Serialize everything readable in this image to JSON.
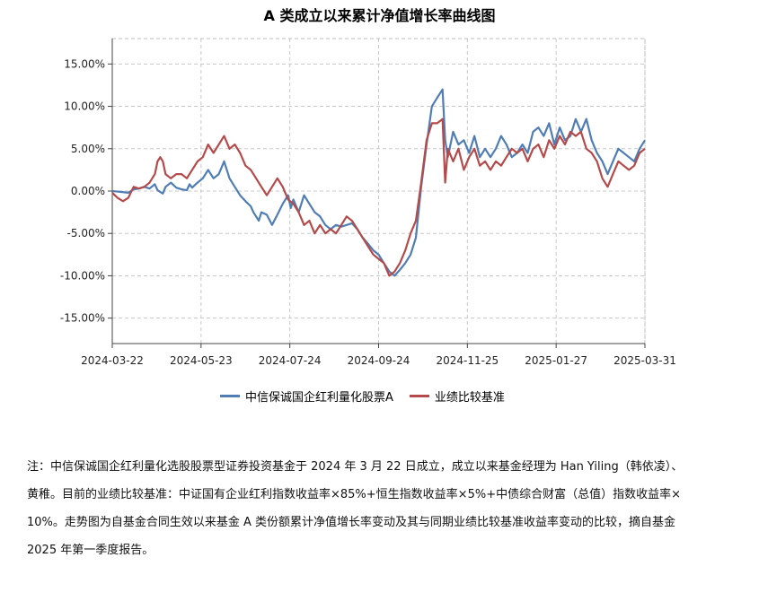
{
  "chart_data": {
    "type": "line",
    "title": "A 类成立以来累计净值增长率曲线图",
    "x_tick_labels": [
      "2024-03-22",
      "2024-05-23",
      "2024-07-24",
      "2024-09-24",
      "2024-11-25",
      "2025-01-27",
      "2025-03-31"
    ],
    "y_tick_labels": [
      "15.00%",
      "10.00%",
      "5.00%",
      "0.00%",
      "-5.00%",
      "-10.00%",
      "-15.00%"
    ],
    "ylim": [
      -18,
      18
    ],
    "xlim": [
      0,
      100
    ],
    "y_unit": "%",
    "grid": true,
    "legend_position": "bottom",
    "series": [
      {
        "name": "中信保诚国企红利量化股票A",
        "color": "#4f7db5",
        "points": [
          [
            0,
            0
          ],
          [
            1.5,
            -0.1
          ],
          [
            3,
            -0.2
          ],
          [
            4,
            0.2
          ],
          [
            5,
            0.3
          ],
          [
            6,
            0.5
          ],
          [
            7,
            0.3
          ],
          [
            8,
            0.8
          ],
          [
            8.5,
            0.1
          ],
          [
            9.5,
            -0.3
          ],
          [
            10,
            0.5
          ],
          [
            11,
            1.0
          ],
          [
            12,
            0.4
          ],
          [
            13,
            0.2
          ],
          [
            14,
            0.1
          ],
          [
            14.5,
            0.8
          ],
          [
            15,
            0.4
          ],
          [
            16,
            1.0
          ],
          [
            17,
            1.5
          ],
          [
            18,
            2.5
          ],
          [
            19,
            1.5
          ],
          [
            20,
            2.0
          ],
          [
            21,
            3.5
          ],
          [
            22,
            1.5
          ],
          [
            23,
            0.5
          ],
          [
            24,
            -0.5
          ],
          [
            25,
            -1.2
          ],
          [
            26,
            -1.8
          ],
          [
            26.5,
            -2.5
          ],
          [
            27.5,
            -3.5
          ],
          [
            28,
            -2.5
          ],
          [
            29,
            -2.8
          ],
          [
            30,
            -4.0
          ],
          [
            31,
            -2.8
          ],
          [
            32,
            -1.5
          ],
          [
            33,
            -0.5
          ],
          [
            33.5,
            -2.0
          ],
          [
            34,
            -1.0
          ],
          [
            35,
            -2.5
          ],
          [
            36,
            -0.5
          ],
          [
            37,
            -1.5
          ],
          [
            38,
            -2.5
          ],
          [
            39,
            -3.0
          ],
          [
            40,
            -4.0
          ],
          [
            41,
            -4.5
          ],
          [
            42,
            -4.0
          ],
          [
            43,
            -4.2
          ],
          [
            44,
            -4.0
          ],
          [
            45,
            -3.8
          ],
          [
            46,
            -4.5
          ],
          [
            47,
            -5.5
          ],
          [
            48,
            -6.2
          ],
          [
            49,
            -7.0
          ],
          [
            50,
            -7.5
          ],
          [
            51,
            -8.5
          ],
          [
            52,
            -9.5
          ],
          [
            53,
            -10.0
          ],
          [
            54,
            -9.3
          ],
          [
            55,
            -8.5
          ],
          [
            56,
            -7.5
          ],
          [
            57,
            -5.5
          ],
          [
            58,
            0.5
          ],
          [
            59,
            5.5
          ],
          [
            60,
            10.0
          ],
          [
            61,
            11.0
          ],
          [
            62,
            12.0
          ],
          [
            62.5,
            6.0
          ],
          [
            63,
            4.0
          ],
          [
            64,
            7.0
          ],
          [
            65,
            5.5
          ],
          [
            66,
            6.0
          ],
          [
            67,
            4.5
          ],
          [
            68,
            6.5
          ],
          [
            69,
            4.0
          ],
          [
            70,
            5.0
          ],
          [
            71,
            4.0
          ],
          [
            72,
            5.0
          ],
          [
            73,
            6.5
          ],
          [
            74,
            5.5
          ],
          [
            75,
            4.0
          ],
          [
            76,
            4.5
          ],
          [
            77,
            5.5
          ],
          [
            78,
            4.5
          ],
          [
            79,
            7.0
          ],
          [
            80,
            7.5
          ],
          [
            81,
            6.5
          ],
          [
            82,
            8.0
          ],
          [
            83,
            5.5
          ],
          [
            84,
            7.5
          ],
          [
            85,
            6.0
          ],
          [
            86,
            6.5
          ],
          [
            87,
            8.5
          ],
          [
            88,
            7.0
          ],
          [
            89,
            8.5
          ],
          [
            90,
            6.0
          ],
          [
            91,
            4.5
          ],
          [
            92,
            3.5
          ],
          [
            93,
            2.0
          ],
          [
            94,
            3.5
          ],
          [
            95,
            5.0
          ],
          [
            96,
            4.5
          ],
          [
            97,
            4.0
          ],
          [
            98,
            3.5
          ],
          [
            99,
            5.0
          ],
          [
            100,
            6.0
          ]
        ]
      },
      {
        "name": "业绩比较基准",
        "color": "#b54a4a",
        "points": [
          [
            0,
            -0.2
          ],
          [
            1,
            -0.8
          ],
          [
            2,
            -1.2
          ],
          [
            3,
            -0.8
          ],
          [
            4,
            0.5
          ],
          [
            5,
            0.3
          ],
          [
            6,
            0.5
          ],
          [
            7,
            1.0
          ],
          [
            8,
            2.0
          ],
          [
            8.5,
            3.5
          ],
          [
            9,
            4.0
          ],
          [
            9.5,
            3.5
          ],
          [
            10,
            2.0
          ],
          [
            11,
            1.5
          ],
          [
            12,
            2.0
          ],
          [
            13,
            2.0
          ],
          [
            14,
            1.5
          ],
          [
            15,
            2.5
          ],
          [
            16,
            3.5
          ],
          [
            17,
            4.0
          ],
          [
            18,
            5.5
          ],
          [
            19,
            4.5
          ],
          [
            20,
            5.5
          ],
          [
            21,
            6.5
          ],
          [
            22,
            5.0
          ],
          [
            23,
            5.5
          ],
          [
            24,
            4.5
          ],
          [
            25,
            3.0
          ],
          [
            26,
            2.5
          ],
          [
            27,
            1.5
          ],
          [
            28,
            0.5
          ],
          [
            29,
            -0.5
          ],
          [
            30,
            0.5
          ],
          [
            31,
            1.5
          ],
          [
            32,
            0.5
          ],
          [
            33,
            -1.0
          ],
          [
            34,
            -1.5
          ],
          [
            35,
            -2.5
          ],
          [
            36,
            -4.0
          ],
          [
            37,
            -3.5
          ],
          [
            38,
            -5.0
          ],
          [
            39,
            -4.0
          ],
          [
            40,
            -5.0
          ],
          [
            41,
            -4.5
          ],
          [
            42,
            -5.0
          ],
          [
            43,
            -4.0
          ],
          [
            44,
            -3.0
          ],
          [
            45,
            -3.5
          ],
          [
            46,
            -4.5
          ],
          [
            47,
            -5.5
          ],
          [
            48,
            -6.5
          ],
          [
            49,
            -7.5
          ],
          [
            50,
            -8.0
          ],
          [
            51,
            -8.5
          ],
          [
            52,
            -10.0
          ],
          [
            53,
            -9.5
          ],
          [
            54,
            -8.5
          ],
          [
            55,
            -7.0
          ],
          [
            56,
            -5.0
          ],
          [
            57,
            -3.5
          ],
          [
            58,
            1.0
          ],
          [
            59,
            6.0
          ],
          [
            60,
            8.0
          ],
          [
            61,
            8.0
          ],
          [
            62,
            8.5
          ],
          [
            62.5,
            1.0
          ],
          [
            63,
            5.0
          ],
          [
            64,
            3.5
          ],
          [
            65,
            5.0
          ],
          [
            66,
            2.5
          ],
          [
            67,
            4.0
          ],
          [
            68,
            5.0
          ],
          [
            69,
            3.0
          ],
          [
            70,
            3.5
          ],
          [
            71,
            2.5
          ],
          [
            72,
            3.5
          ],
          [
            73,
            3.0
          ],
          [
            74,
            4.0
          ],
          [
            75,
            5.0
          ],
          [
            76,
            4.5
          ],
          [
            77,
            5.0
          ],
          [
            78,
            3.5
          ],
          [
            79,
            5.0
          ],
          [
            80,
            5.5
          ],
          [
            81,
            4.0
          ],
          [
            82,
            6.0
          ],
          [
            83,
            5.0
          ],
          [
            84,
            6.5
          ],
          [
            85,
            5.5
          ],
          [
            86,
            7.0
          ],
          [
            87,
            6.5
          ],
          [
            88,
            7.0
          ],
          [
            89,
            5.0
          ],
          [
            90,
            4.5
          ],
          [
            91,
            3.5
          ],
          [
            92,
            1.5
          ],
          [
            93,
            0.5
          ],
          [
            94,
            2.0
          ],
          [
            95,
            3.5
          ],
          [
            96,
            3.0
          ],
          [
            97,
            2.5
          ],
          [
            98,
            3.0
          ],
          [
            99,
            4.5
          ],
          [
            100,
            5.0
          ]
        ]
      }
    ]
  },
  "note": {
    "line1": "注：中信保诚国企红利量化选股股票型证券投资基金于 2024 年 3 月 22 日成立，成立以来基金经理为 Han Yiling（韩依凌）、",
    "line2": "黄稚。目前的业绩比较基准：中证国有企业红利指数收益率×85%+恒生指数收益率×5%+中债综合财富（总值）指数收益率×",
    "line3": "10%。走势图为自基金合同生效以来基金 A 类份额累计净值增长率变动及其与同期业绩比较基准收益率变动的比较，摘自基金",
    "line4": "2025 年第一季度报告。"
  }
}
